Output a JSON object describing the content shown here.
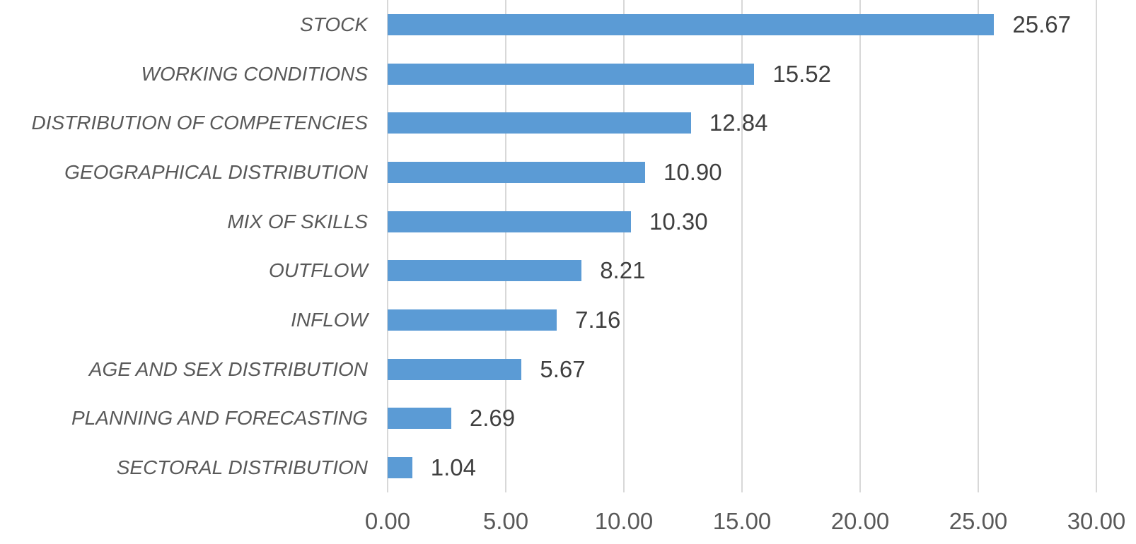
{
  "chart_data": {
    "type": "bar",
    "orientation": "horizontal",
    "title": "",
    "xlabel": "",
    "ylabel": "",
    "categories": [
      "STOCK",
      "WORKING CONDITIONS",
      "DISTRIBUTION OF COMPETENCIES",
      "GEOGRAPHICAL DISTRIBUTION",
      "MIX OF SKILLS",
      "OUTFLOW",
      "INFLOW",
      "AGE AND SEX DISTRIBUTION",
      "PLANNING AND FORECASTING",
      "SECTORAL DISTRIBUTION"
    ],
    "values": [
      25.67,
      15.52,
      12.84,
      10.9,
      10.3,
      8.21,
      7.16,
      5.67,
      2.69,
      1.04
    ],
    "value_labels": [
      "25.67",
      "15.52",
      "12.84",
      "10.90",
      "10.30",
      "8.21",
      "7.16",
      "5.67",
      "2.69",
      "1.04"
    ],
    "x_ticks": [
      0,
      5,
      10,
      15,
      20,
      25,
      30
    ],
    "x_tick_labels": [
      "0.00",
      "5.00",
      "10.00",
      "15.00",
      "20.00",
      "25.00",
      "30.00"
    ],
    "xlim": [
      0,
      30
    ],
    "grid": "vertical-only",
    "legend": "none",
    "data_labels": "outside-end",
    "colors": {
      "bar": "#5B9BD5",
      "gridline": "#D8D8D8",
      "category_label": "#595959",
      "value_label": "#3F3F3F",
      "axis_tick_label": "#595959",
      "background": "#FFFFFF"
    }
  }
}
